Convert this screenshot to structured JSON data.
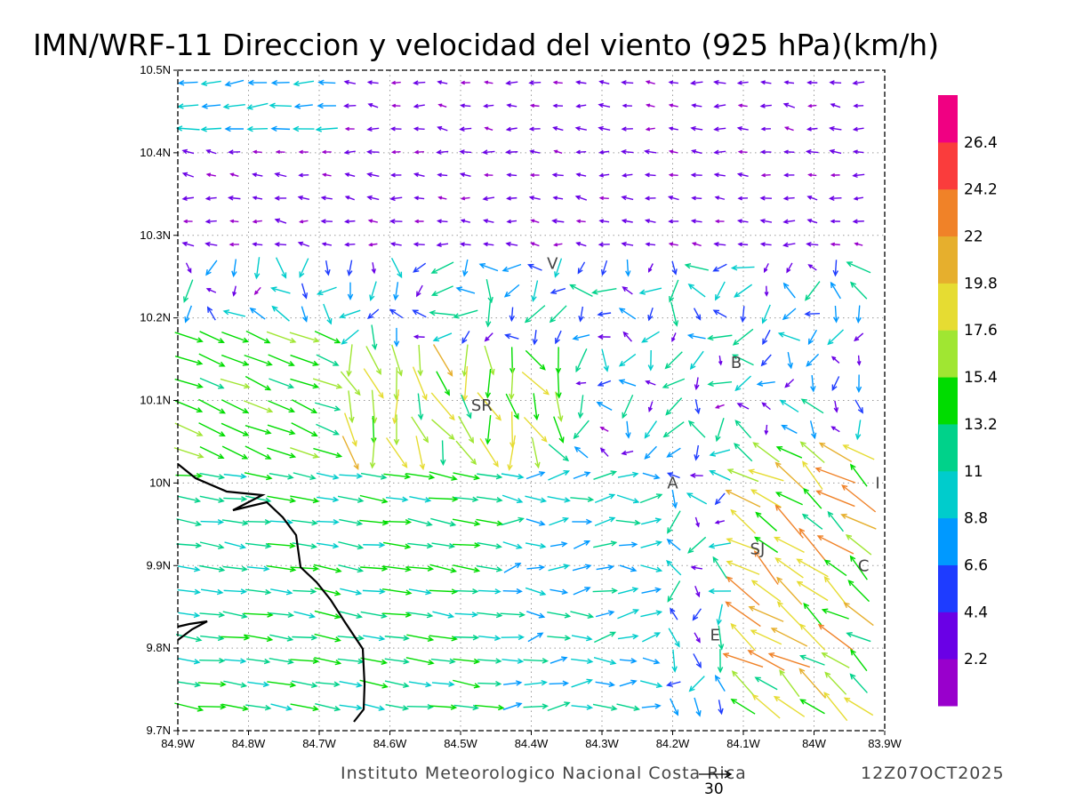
{
  "title": "IMN/WRF-11 Direccion y velocidad del viento (925 hPa)(km/h)",
  "footer": {
    "credit": "Instituto Meteorologico Nacional Costa Rica",
    "datetime": "12Z07OCT2025",
    "reference_vector_label": "30"
  },
  "map": {
    "lon_range": [
      -84.9,
      -83.9
    ],
    "lat_range": [
      9.7,
      10.5
    ],
    "x_ticks": [
      "84.9W",
      "84.8W",
      "84.7W",
      "84.6W",
      "84.5W",
      "84.4W",
      "84.3W",
      "84.2W",
      "84.1W",
      "84W",
      "83.9W"
    ],
    "y_ticks": [
      "9.7N",
      "9.8N",
      "9.9N",
      "10N",
      "10.1N",
      "10.2N",
      "10.3N",
      "10.4N",
      "10.5N"
    ],
    "gridlines": true,
    "stations": [
      {
        "label": "V",
        "lon": -84.37,
        "lat": 10.266
      },
      {
        "label": "SR",
        "lon": -84.47,
        "lat": 10.094
      },
      {
        "label": "B",
        "lon": -84.11,
        "lat": 10.146
      },
      {
        "label": "A",
        "lon": -84.2,
        "lat": 10.0
      },
      {
        "label": "SJ",
        "lon": -84.08,
        "lat": 9.92
      },
      {
        "label": "C",
        "lon": -83.93,
        "lat": 9.9
      },
      {
        "label": "E",
        "lon": -84.14,
        "lat": 9.816
      },
      {
        "label": "I",
        "lon": -83.91,
        "lat": 10.0
      }
    ]
  },
  "colorbar": {
    "colors": [
      "#9900cc",
      "#6a00e6",
      "#1e3cff",
      "#0099ff",
      "#00cccc",
      "#00d28a",
      "#00dc00",
      "#a0e632",
      "#e6dc32",
      "#e6af2d",
      "#f08228",
      "#fa3c3c",
      "#f00082"
    ],
    "labels": [
      "2.2",
      "4.4",
      "6.6",
      "8.8",
      "11",
      "13.2",
      "15.4",
      "17.6",
      "19.8",
      "22",
      "24.2",
      "26.4"
    ]
  },
  "legend_reference_speed_kmh": 30,
  "colors": {
    "coastline": "#000000",
    "grid": "#9a9a9a"
  },
  "icons": [
    "wind-vector-arrow"
  ]
}
